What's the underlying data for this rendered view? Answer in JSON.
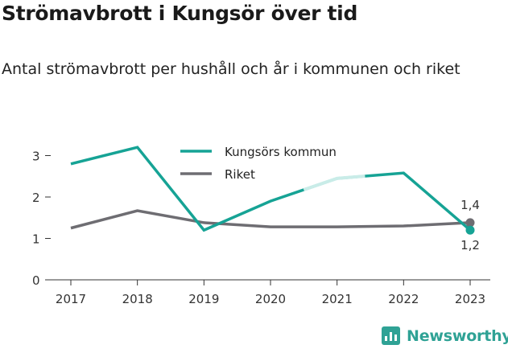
{
  "title": "Strömavbrott i Kungsör över tid",
  "subtitle": "Antal strömavbrott per hushåll och år i kommunen och riket",
  "brand": "Newsworthy",
  "colors": {
    "kommun": "#16a395",
    "kommun_faded": "#c9ece8",
    "riket": "#6e6d72",
    "axis": "#333333",
    "brand": "#2fa295"
  },
  "chart_data": {
    "type": "line",
    "x": [
      "2017",
      "2018",
      "2019",
      "2020",
      "2021",
      "2022",
      "2023"
    ],
    "ylim": [
      0,
      3.3
    ],
    "yticks": [
      "0",
      "1",
      "2",
      "3"
    ],
    "grid": false,
    "legend": "top-center",
    "series": [
      {
        "name": "Kungsörs kommun",
        "values": [
          2.8,
          3.2,
          1.2,
          1.9,
          2.45,
          2.58,
          1.2
        ],
        "end_label": "1,2"
      },
      {
        "name": "Riket",
        "values": [
          1.25,
          1.67,
          1.38,
          1.28,
          1.28,
          1.3,
          1.38
        ],
        "end_label": "1,4"
      }
    ]
  }
}
